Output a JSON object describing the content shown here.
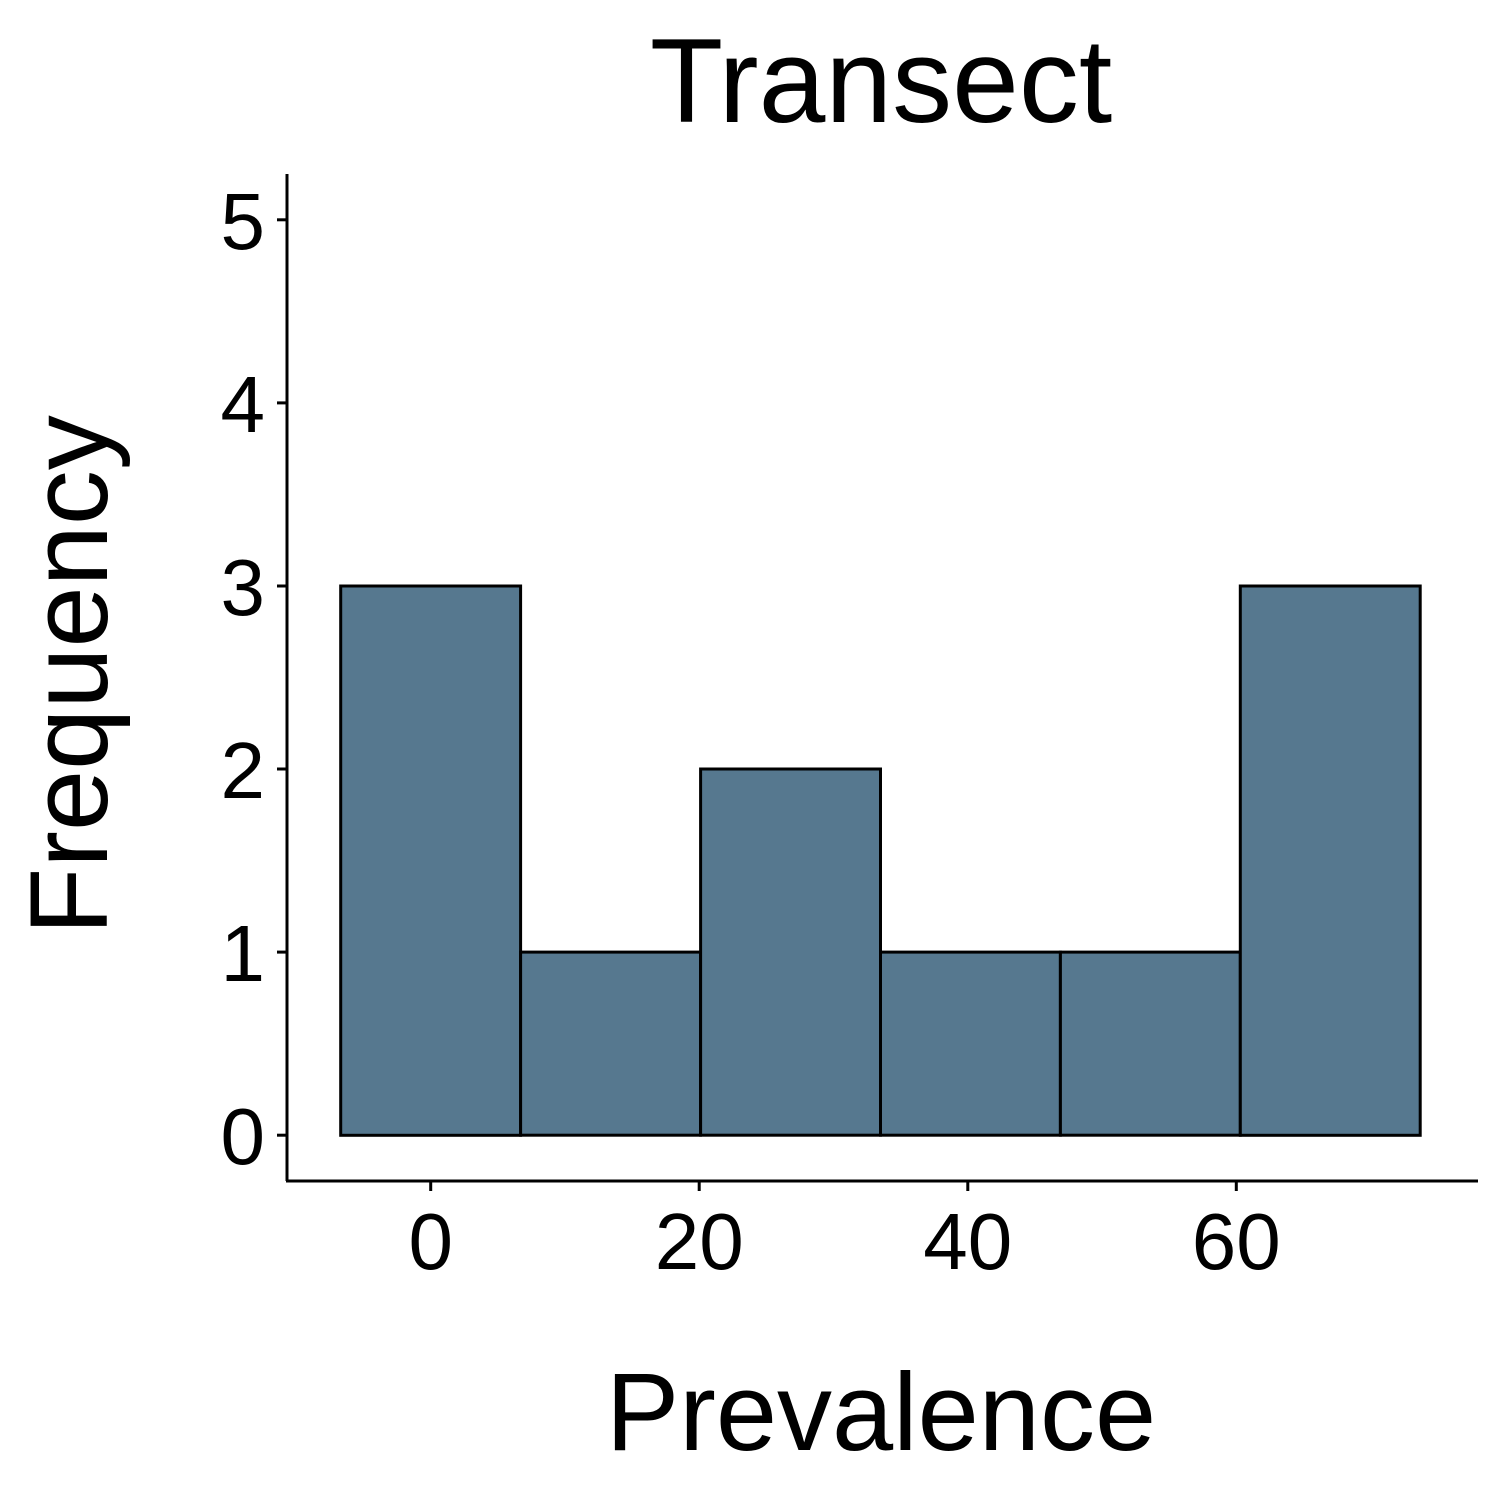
{
  "chart_data": {
    "type": "bar",
    "title": "Transect",
    "xlabel": "Prevalence",
    "ylabel": "Frequency",
    "bins": [
      {
        "x0": -6.7,
        "x1": 6.7,
        "count": 3
      },
      {
        "x0": 6.7,
        "x1": 20.1,
        "count": 1
      },
      {
        "x0": 20.1,
        "x1": 33.5,
        "count": 2
      },
      {
        "x0": 33.5,
        "x1": 46.9,
        "count": 1
      },
      {
        "x0": 46.9,
        "x1": 60.3,
        "count": 1
      },
      {
        "x0": 60.3,
        "x1": 73.7,
        "count": 3
      }
    ],
    "xlim": [
      -10.7,
      78
    ],
    "ylim": [
      -0.25,
      5.25
    ],
    "xticks": [
      "0",
      "20",
      "40",
      "60"
    ],
    "yticks": [
      "0",
      "1",
      "2",
      "3",
      "4",
      "5"
    ],
    "bar_color": "#56788f",
    "grid": false,
    "legend": "none"
  }
}
